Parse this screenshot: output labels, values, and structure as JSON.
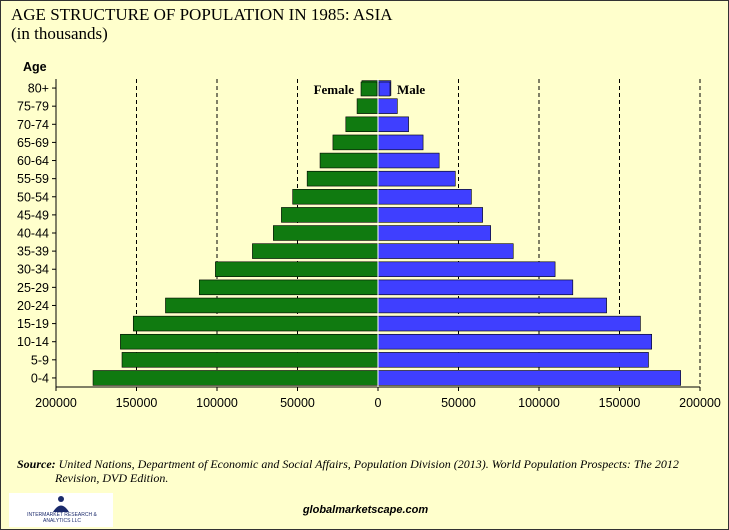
{
  "chart_data": {
    "type": "bar",
    "title": "AGE STRUCTURE OF POPULATION  IN 1985: ASIA",
    "subtitle": "(in thousands)",
    "ylabel": "Age",
    "categories": [
      "0-4",
      "5-9",
      "10-14",
      "15-19",
      "20-24",
      "25-29",
      "30-34",
      "35-39",
      "40-44",
      "45-49",
      "50-54",
      "55-59",
      "60-64",
      "65-69",
      "70-74",
      "75-79",
      "80+"
    ],
    "series": [
      {
        "name": "Female",
        "color": "#107a10",
        "values": [
          177000,
          159000,
          160000,
          152000,
          132000,
          111000,
          101000,
          78000,
          65000,
          60000,
          53000,
          44000,
          36000,
          28000,
          20000,
          13000,
          10000
        ]
      },
      {
        "name": "Male",
        "color": "#3f3fff",
        "values": [
          188000,
          168000,
          170000,
          163000,
          142000,
          121000,
          110000,
          84000,
          70000,
          65000,
          58000,
          48000,
          38000,
          28000,
          19000,
          12000,
          8000
        ]
      }
    ],
    "xlim": [
      -200000,
      200000
    ],
    "xticks": [
      -200000,
      -150000,
      -100000,
      -50000,
      0,
      50000,
      100000,
      150000,
      200000
    ],
    "xtick_labels": [
      "200000",
      "150000",
      "100000",
      "50000",
      "0",
      "50000",
      "100000",
      "150000",
      "200000"
    ],
    "grid": "vertical dashed",
    "legend": "top-center"
  },
  "source": {
    "label": "Source:",
    "line1": " United Nations, Department of Economic and Social Affairs, Population Division (2013). World Population Prospects:  The 2012",
    "line2": "Revision, DVD Edition."
  },
  "website": "globalmarketscape.com",
  "logo": {
    "text": "INTERMARKET RESEARCH & ANALYTICS LLC"
  },
  "colors": {
    "background": "#ffffcc",
    "female": "#107a10",
    "male": "#3f3fff"
  }
}
